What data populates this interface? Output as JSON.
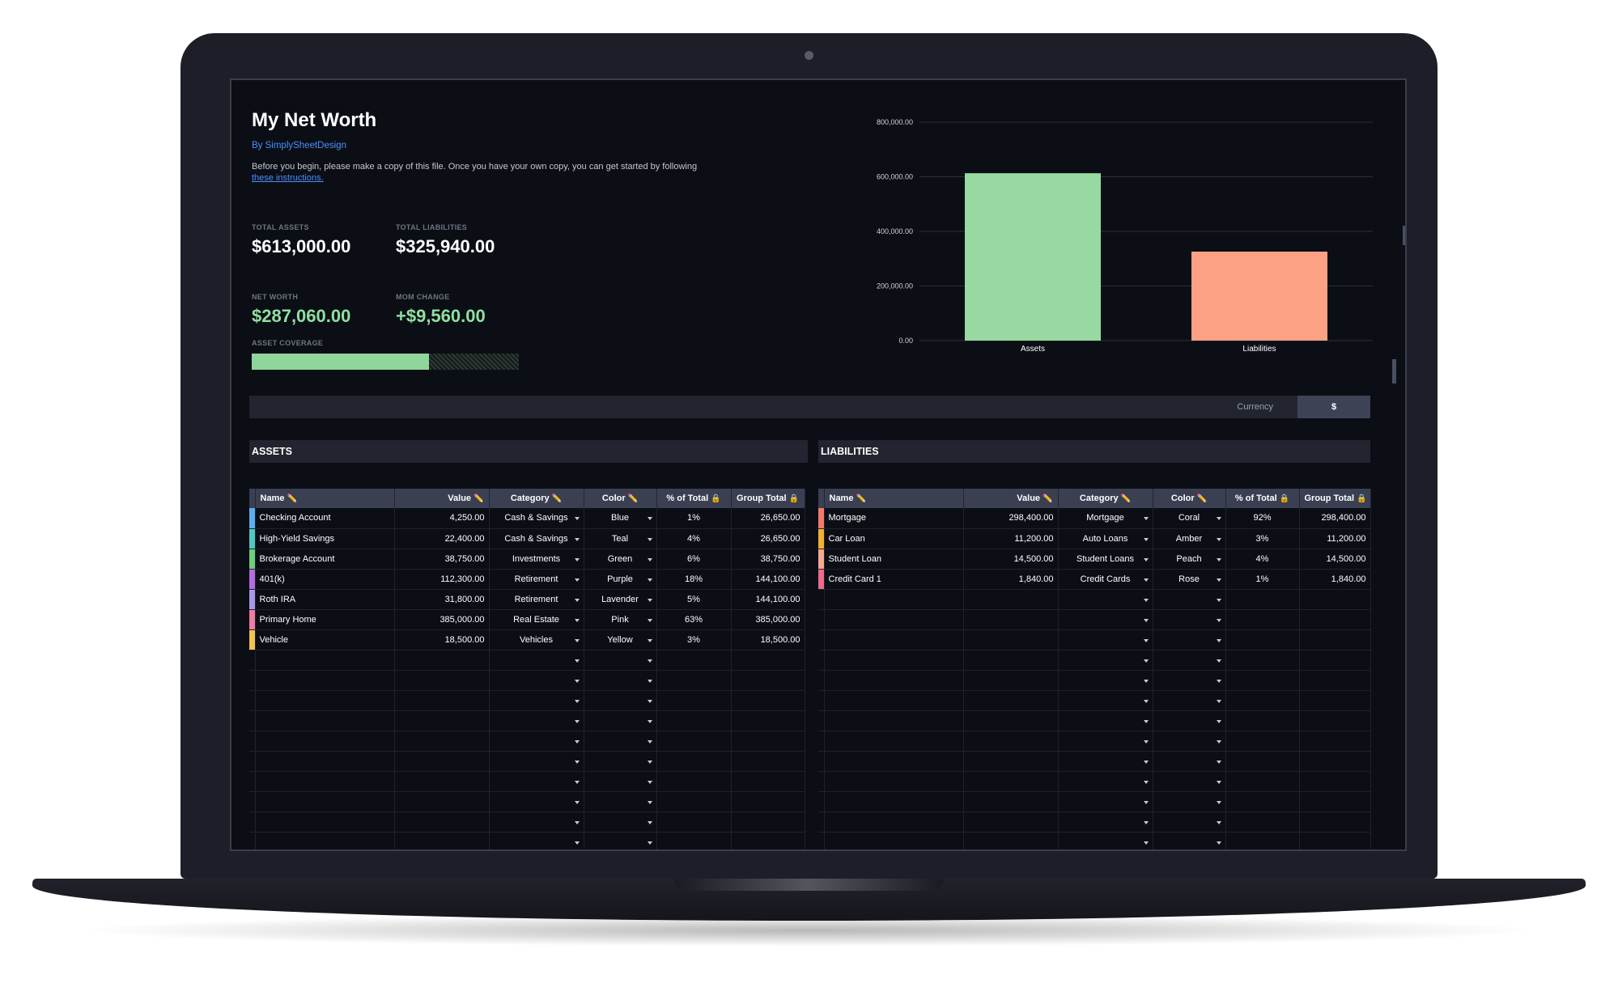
{
  "header": {
    "title": "My Net Worth",
    "byline": "By SimplySheetDesign",
    "intro_text": "Before you begin, please make a copy of this file. Once you have your own copy, you can get started by following",
    "intro_link": "these instructions."
  },
  "kpis": {
    "total_assets_label": "TOTAL ASSETS",
    "total_assets": "$613,000.00",
    "total_liabilities_label": "TOTAL LIABILITIES",
    "total_liabilities": "$325,940.00",
    "net_worth_label": "NET WORTH",
    "net_worth": "$287,060.00",
    "mom_change_label": "MOM CHANGE",
    "mom_change": "+$9,560.00",
    "asset_coverage_label": "ASSET COVERAGE",
    "asset_coverage_fraction": 0.665
  },
  "chart_data": {
    "type": "bar",
    "categories": [
      "Assets",
      "Liabilities"
    ],
    "values": [
      613000,
      325940
    ],
    "colors": [
      "#97d9a0",
      "#fda185"
    ],
    "ylim": [
      0,
      800000
    ],
    "yticks": [
      0,
      200000,
      400000,
      600000,
      800000
    ],
    "ytick_labels": [
      "0.00",
      "200,000.00",
      "400,000.00",
      "600,000.00",
      "800,000.00"
    ],
    "grid": true
  },
  "currency": {
    "label": "Currency",
    "value": "$"
  },
  "assets": {
    "section_title": "ASSETS",
    "columns": [
      "Name",
      "Value",
      "Category",
      "Color",
      "% of Total",
      "Group Total"
    ],
    "column_icons": [
      "pencil-icon",
      "pencil-icon",
      "pencil-icon",
      "pencil-icon",
      "lock-icon",
      "lock-icon"
    ],
    "rows": [
      {
        "swatch": "#5aaef0",
        "name": "Checking Account",
        "value": "4,250.00",
        "category": "Cash & Savings",
        "color": "Blue",
        "pct": "1%",
        "group_total": "26,650.00"
      },
      {
        "swatch": "#4fc9c2",
        "name": "High-Yield Savings",
        "value": "22,400.00",
        "category": "Cash & Savings",
        "color": "Teal",
        "pct": "4%",
        "group_total": "26,650.00"
      },
      {
        "swatch": "#6ecf7a",
        "name": "Brokerage Account",
        "value": "38,750.00",
        "category": "Investments",
        "color": "Green",
        "pct": "6%",
        "group_total": "38,750.00"
      },
      {
        "swatch": "#b46de0",
        "name": "401(k)",
        "value": "112,300.00",
        "category": "Retirement",
        "color": "Purple",
        "pct": "18%",
        "group_total": "144,100.00"
      },
      {
        "swatch": "#a99ae8",
        "name": "Roth IRA",
        "value": "31,800.00",
        "category": "Retirement",
        "color": "Lavender",
        "pct": "5%",
        "group_total": "144,100.00"
      },
      {
        "swatch": "#f07aa8",
        "name": "Primary Home",
        "value": "385,000.00",
        "category": "Real Estate",
        "color": "Pink",
        "pct": "63%",
        "group_total": "385,000.00"
      },
      {
        "swatch": "#f2c34f",
        "name": "Vehicle",
        "value": "18,500.00",
        "category": "Vehicles",
        "color": "Yellow",
        "pct": "3%",
        "group_total": "18,500.00"
      }
    ]
  },
  "liabilities": {
    "section_title": "LIABILITIES",
    "columns": [
      "Name",
      "Value",
      "Category",
      "Color",
      "% of Total",
      "Group Total"
    ],
    "column_icons": [
      "pencil-icon",
      "pencil-icon",
      "pencil-icon",
      "pencil-icon",
      "lock-icon",
      "lock-icon"
    ],
    "rows": [
      {
        "swatch": "#f27a6a",
        "name": "Mortgage",
        "value": "298,400.00",
        "category": "Mortgage",
        "color": "Coral",
        "pct": "92%",
        "group_total": "298,400.00"
      },
      {
        "swatch": "#f2b033",
        "name": "Car Loan",
        "value": "11,200.00",
        "category": "Auto Loans",
        "color": "Amber",
        "pct": "3%",
        "group_total": "11,200.00"
      },
      {
        "swatch": "#f6a890",
        "name": "Student Loan",
        "value": "14,500.00",
        "category": "Student Loans",
        "color": "Peach",
        "pct": "4%",
        "group_total": "14,500.00"
      },
      {
        "swatch": "#f06a8c",
        "name": "Credit Card 1",
        "value": "1,840.00",
        "category": "Credit Cards",
        "color": "Rose",
        "pct": "1%",
        "group_total": "1,840.00"
      }
    ]
  }
}
